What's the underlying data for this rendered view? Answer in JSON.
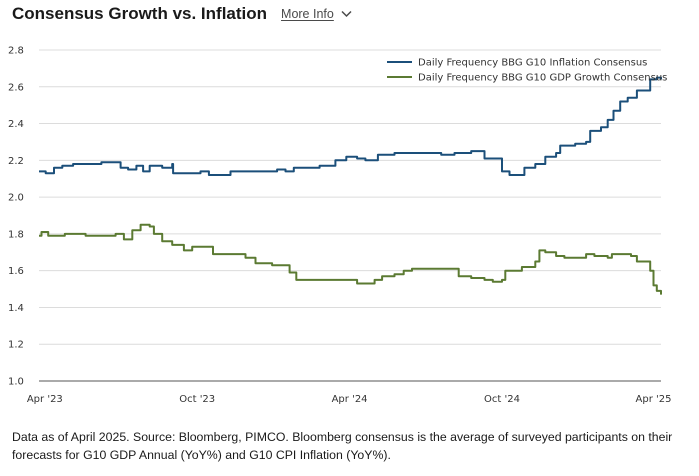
{
  "header": {
    "title": "Consensus Growth vs. Inflation",
    "more_info": "More Info",
    "more_info_icon": "chevron-down-icon"
  },
  "footnote": "Data as of April 2025. Source: Bloomberg, PIMCO. Bloomberg consensus is the average of surveyed participants on their forecasts for G10 GDP Annual (YoY%) and G10 CPI Inflation (YoY%).",
  "chart_data": {
    "type": "line",
    "title": "Consensus Growth vs. Inflation",
    "xlabel": "",
    "ylabel": "",
    "ylim": [
      1.0,
      2.8
    ],
    "yticks": [
      1.0,
      1.2,
      1.4,
      1.6,
      1.8,
      2.0,
      2.2,
      2.4,
      2.6,
      2.8
    ],
    "ytick_labels": [
      "1.0",
      "1.2",
      "1.4",
      "1.6",
      "1.8",
      "2.0",
      "2.2",
      "2.4",
      "2.6",
      "2.8"
    ],
    "xlim": [
      "2023-03-25",
      "2025-04-10"
    ],
    "xticks": [
      "2023-04-01",
      "2023-10-01",
      "2024-04-01",
      "2024-10-01",
      "2025-04-01"
    ],
    "xtick_labels": [
      "Apr '23",
      "Oct '23",
      "Apr '24",
      "Oct '24",
      "Apr '25"
    ],
    "grid": "horizontal",
    "legend_position": "top-right",
    "series": [
      {
        "name": "Daily Frequency BBG G10 Inflation Consensus",
        "color": "#1b4f7a",
        "points": [
          [
            "2023-03-25",
            2.14
          ],
          [
            "2023-04-02",
            2.13
          ],
          [
            "2023-04-12",
            2.16
          ],
          [
            "2023-04-22",
            2.17
          ],
          [
            "2023-05-05",
            2.18
          ],
          [
            "2023-05-25",
            2.18
          ],
          [
            "2023-06-08",
            2.19
          ],
          [
            "2023-06-25",
            2.19
          ],
          [
            "2023-07-01",
            2.16
          ],
          [
            "2023-07-10",
            2.15
          ],
          [
            "2023-07-20",
            2.17
          ],
          [
            "2023-07-28",
            2.14
          ],
          [
            "2023-08-05",
            2.17
          ],
          [
            "2023-08-20",
            2.16
          ],
          [
            "2023-09-01",
            2.18
          ],
          [
            "2023-09-02",
            2.13
          ],
          [
            "2023-09-20",
            2.13
          ],
          [
            "2023-10-05",
            2.14
          ],
          [
            "2023-10-15",
            2.12
          ],
          [
            "2023-10-25",
            2.12
          ],
          [
            "2023-11-10",
            2.14
          ],
          [
            "2023-11-25",
            2.14
          ],
          [
            "2023-12-15",
            2.14
          ],
          [
            "2023-12-30",
            2.14
          ],
          [
            "2024-01-05",
            2.15
          ],
          [
            "2024-01-15",
            2.14
          ],
          [
            "2024-01-25",
            2.16
          ],
          [
            "2024-02-10",
            2.16
          ],
          [
            "2024-02-25",
            2.17
          ],
          [
            "2024-03-10",
            2.17
          ],
          [
            "2024-03-15",
            2.2
          ],
          [
            "2024-03-28",
            2.22
          ],
          [
            "2024-04-10",
            2.21
          ],
          [
            "2024-04-20",
            2.2
          ],
          [
            "2024-05-05",
            2.23
          ],
          [
            "2024-05-25",
            2.24
          ],
          [
            "2024-06-15",
            2.24
          ],
          [
            "2024-07-05",
            2.24
          ],
          [
            "2024-07-20",
            2.23
          ],
          [
            "2024-08-05",
            2.24
          ],
          [
            "2024-08-25",
            2.25
          ],
          [
            "2024-09-05",
            2.25
          ],
          [
            "2024-09-10",
            2.21
          ],
          [
            "2024-09-25",
            2.21
          ],
          [
            "2024-10-01",
            2.14
          ],
          [
            "2024-10-10",
            2.12
          ],
          [
            "2024-10-22",
            2.12
          ],
          [
            "2024-10-28",
            2.16
          ],
          [
            "2024-11-10",
            2.18
          ],
          [
            "2024-11-22",
            2.22
          ],
          [
            "2024-12-05",
            2.24
          ],
          [
            "2024-12-10",
            2.28
          ],
          [
            "2024-12-28",
            2.29
          ],
          [
            "2025-01-10",
            2.3
          ],
          [
            "2025-01-15",
            2.36
          ],
          [
            "2025-01-28",
            2.38
          ],
          [
            "2025-02-05",
            2.42
          ],
          [
            "2025-02-12",
            2.47
          ],
          [
            "2025-02-20",
            2.52
          ],
          [
            "2025-03-01",
            2.54
          ],
          [
            "2025-03-12",
            2.58
          ],
          [
            "2025-03-25",
            2.58
          ],
          [
            "2025-03-28",
            2.64
          ],
          [
            "2025-04-05",
            2.65
          ],
          [
            "2025-04-10",
            2.64
          ]
        ]
      },
      {
        "name": "Daily Frequency BBG G10 GDP Growth Consensus",
        "color": "#5b7a32",
        "points": [
          [
            "2023-03-25",
            1.79
          ],
          [
            "2023-03-28",
            1.81
          ],
          [
            "2023-04-05",
            1.79
          ],
          [
            "2023-04-20",
            1.79
          ],
          [
            "2023-04-25",
            1.8
          ],
          [
            "2023-05-10",
            1.8
          ],
          [
            "2023-05-20",
            1.79
          ],
          [
            "2023-06-10",
            1.79
          ],
          [
            "2023-06-25",
            1.8
          ],
          [
            "2023-07-05",
            1.77
          ],
          [
            "2023-07-15",
            1.82
          ],
          [
            "2023-07-25",
            1.85
          ],
          [
            "2023-08-05",
            1.84
          ],
          [
            "2023-08-10",
            1.8
          ],
          [
            "2023-08-20",
            1.76
          ],
          [
            "2023-09-01",
            1.74
          ],
          [
            "2023-09-15",
            1.71
          ],
          [
            "2023-09-25",
            1.73
          ],
          [
            "2023-10-05",
            1.73
          ],
          [
            "2023-10-20",
            1.69
          ],
          [
            "2023-11-20",
            1.69
          ],
          [
            "2023-11-28",
            1.67
          ],
          [
            "2023-12-10",
            1.64
          ],
          [
            "2023-12-30",
            1.63
          ],
          [
            "2024-01-10",
            1.63
          ],
          [
            "2024-01-20",
            1.59
          ],
          [
            "2024-01-28",
            1.55
          ],
          [
            "2024-02-15",
            1.55
          ],
          [
            "2024-03-20",
            1.55
          ],
          [
            "2024-04-05",
            1.55
          ],
          [
            "2024-04-10",
            1.53
          ],
          [
            "2024-04-25",
            1.53
          ],
          [
            "2024-05-01",
            1.55
          ],
          [
            "2024-05-10",
            1.57
          ],
          [
            "2024-05-25",
            1.58
          ],
          [
            "2024-06-05",
            1.6
          ],
          [
            "2024-06-15",
            1.61
          ],
          [
            "2024-07-15",
            1.61
          ],
          [
            "2024-08-01",
            1.61
          ],
          [
            "2024-08-10",
            1.57
          ],
          [
            "2024-08-25",
            1.56
          ],
          [
            "2024-09-10",
            1.55
          ],
          [
            "2024-09-20",
            1.54
          ],
          [
            "2024-10-01",
            1.55
          ],
          [
            "2024-10-05",
            1.6
          ],
          [
            "2024-10-20",
            1.6
          ],
          [
            "2024-10-25",
            1.62
          ],
          [
            "2024-11-05",
            1.62
          ],
          [
            "2024-11-10",
            1.65
          ],
          [
            "2024-11-15",
            1.71
          ],
          [
            "2024-11-22",
            1.7
          ],
          [
            "2024-12-05",
            1.68
          ],
          [
            "2024-12-15",
            1.67
          ],
          [
            "2025-01-05",
            1.67
          ],
          [
            "2025-01-10",
            1.69
          ],
          [
            "2025-01-20",
            1.68
          ],
          [
            "2025-02-05",
            1.67
          ],
          [
            "2025-02-10",
            1.69
          ],
          [
            "2025-02-25",
            1.69
          ],
          [
            "2025-03-05",
            1.68
          ],
          [
            "2025-03-12",
            1.65
          ],
          [
            "2025-03-25",
            1.65
          ],
          [
            "2025-03-28",
            1.6
          ],
          [
            "2025-04-01",
            1.52
          ],
          [
            "2025-04-05",
            1.49
          ],
          [
            "2025-04-10",
            1.47
          ]
        ]
      }
    ]
  }
}
